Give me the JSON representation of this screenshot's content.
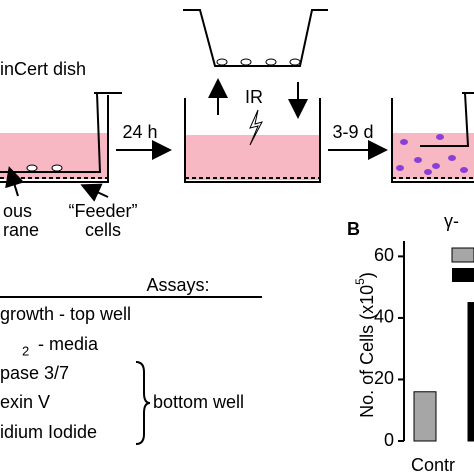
{
  "diagram": {
    "dish_label": "inCert dish",
    "step1": "24 h",
    "irradiation": "IR",
    "step2": "3-9 d",
    "membrane_label": [
      "ous",
      "rane"
    ],
    "feeder_label": [
      "“Feeder”",
      "cells"
    ],
    "assays_title": "Assays:",
    "assays": [
      "growth - top well",
      "2",
      "- media",
      "pase 3/7",
      "exin V",
      "idium Iodide"
    ],
    "bottom_label": "bottom well"
  },
  "chart_data": {
    "type": "bar",
    "panel": "B",
    "title": "γ-",
    "y_label": [
      "No. of Cells (x10",
      "5",
      ")"
    ],
    "categories": [
      "Contr"
    ],
    "series": [
      {
        "color": "#a6a6a6",
        "values": [
          16
        ]
      },
      {
        "color": "#000000",
        "values": [
          45
        ]
      }
    ],
    "ylim": [
      0,
      65
    ],
    "yticks": [
      0,
      20,
      40,
      60
    ]
  }
}
